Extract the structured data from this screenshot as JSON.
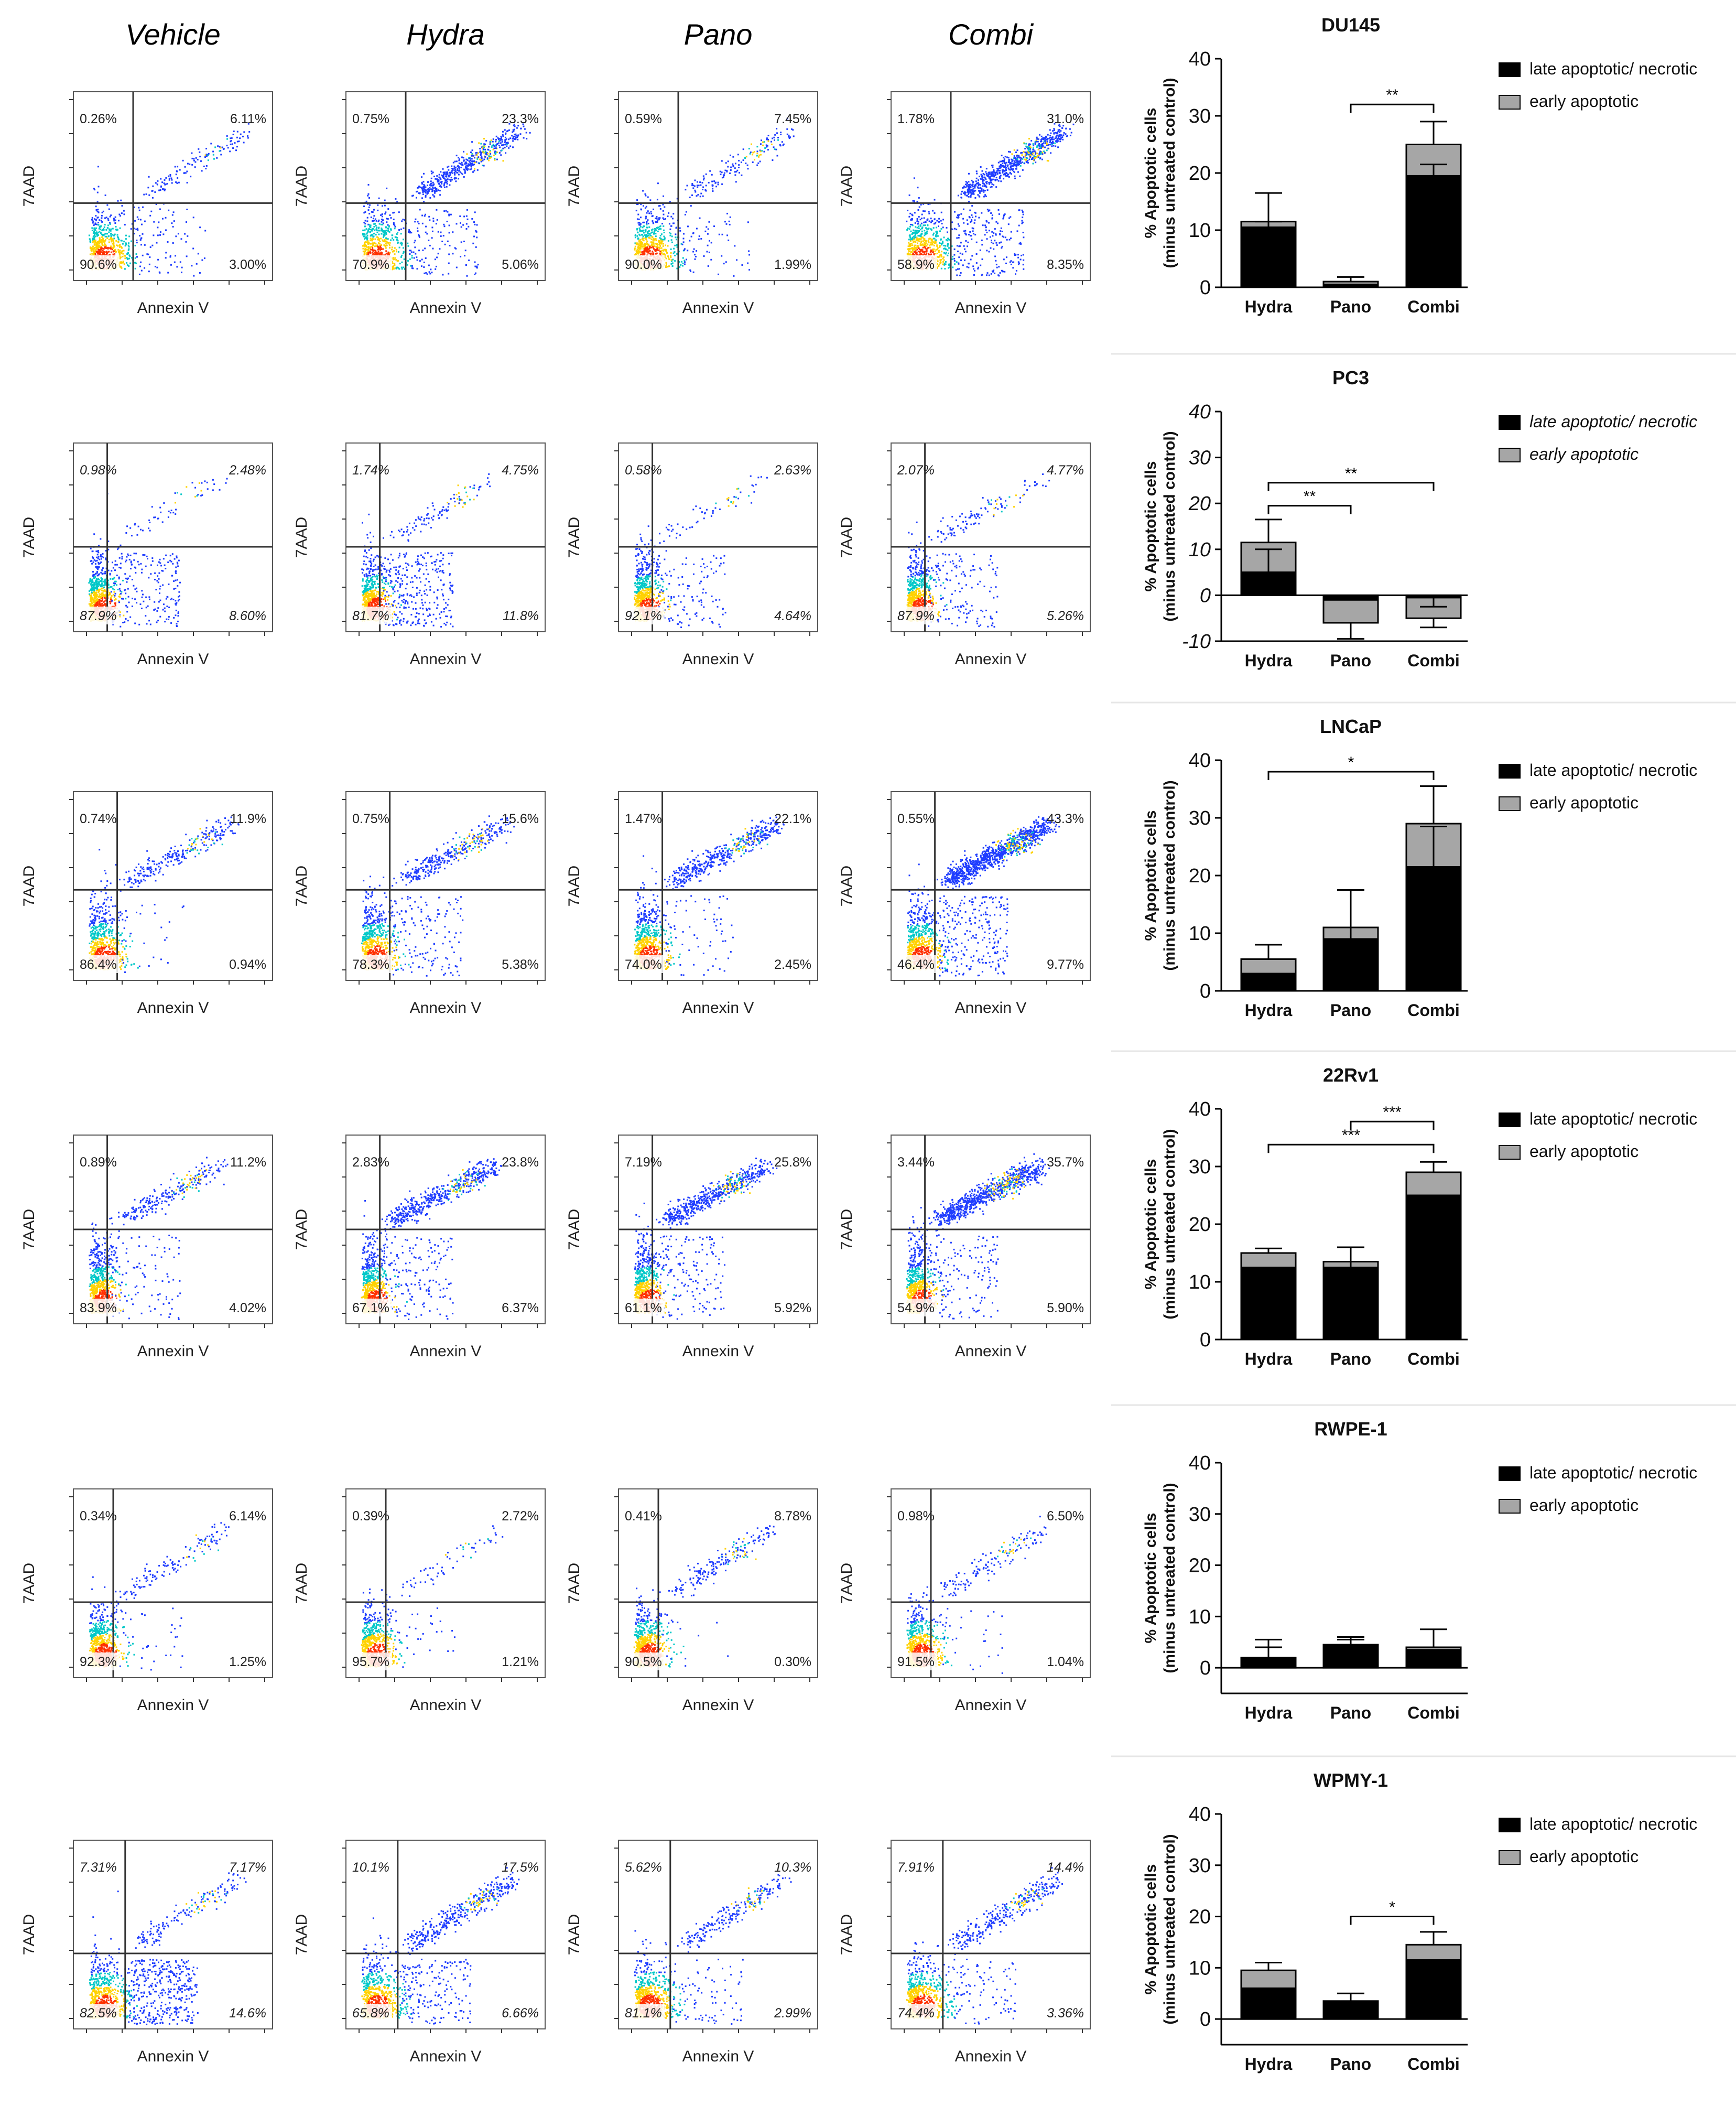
{
  "conditions": [
    "Vehicle",
    "Hydra",
    "Pano",
    "Combi"
  ],
  "flow_axis_labels": {
    "x": "Annexin V",
    "y": "7AAD"
  },
  "colors": {
    "late_apoptotic": "#000000",
    "early_apoptotic": "#a6a6a6",
    "dots_low": "#1f3dff",
    "dots_mid": "#00c8c8",
    "dots_high": "#ffd200",
    "dots_peak": "#ff3000"
  },
  "chart_data": [
    {
      "type": "bar",
      "title": "DU145",
      "categories": [
        "Hydra",
        "Pano",
        "Combi"
      ],
      "ylabel": "% Apoptotic cells (minus untreated control)",
      "ylim": [
        0,
        40
      ],
      "yticks": [
        0,
        10,
        20,
        30,
        40
      ],
      "legend": [
        "late apoptotic/ necrotic",
        "early apoptotic"
      ],
      "series": [
        {
          "name": "late apoptotic/ necrotic",
          "values": [
            10.5,
            0.5,
            19.5
          ]
        },
        {
          "name": "early apoptotic",
          "values": [
            1.0,
            0.5,
            5.5
          ]
        }
      ],
      "errors": [
        [
          5.0,
          0.8,
          4.0
        ],
        [
          1.0,
          0,
          2.0
        ]
      ],
      "significance": [
        {
          "from": "Pano",
          "to": "Combi",
          "label": "**"
        }
      ],
      "flow": [
        {
          "condition": "Vehicle",
          "ul": "0.26%",
          "ur": "6.11%",
          "ll": "90.6%",
          "lr": "3.00%"
        },
        {
          "condition": "Hydra",
          "ul": "0.75%",
          "ur": "23.3%",
          "ll": "70.9%",
          "lr": "5.06%"
        },
        {
          "condition": "Pano",
          "ul": "0.59%",
          "ur": "7.45%",
          "ll": "90.0%",
          "lr": "1.99%"
        },
        {
          "condition": "Combi",
          "ul": "1.78%",
          "ur": "31.0%",
          "ll": "58.9%",
          "lr": "8.35%"
        }
      ]
    },
    {
      "type": "bar",
      "title": "PC3",
      "categories": [
        "Hydra",
        "Pano",
        "Combi"
      ],
      "ylabel": "% Apoptotic cells (minus untreated control)",
      "ylim": [
        -10,
        40
      ],
      "yticks": [
        -10,
        0,
        10,
        20,
        30,
        40
      ],
      "legend": [
        "late apoptotic/ necrotic",
        "early apoptotic"
      ],
      "series": [
        {
          "name": "late apoptotic/ necrotic",
          "values": [
            5.0,
            -1.0,
            -0.5
          ]
        },
        {
          "name": "early apoptotic",
          "values": [
            6.5,
            -5.0,
            -4.5
          ]
        }
      ],
      "errors": [
        [
          5.0,
          3.5,
          2.0
        ],
        [
          5.0,
          0,
          2.0
        ]
      ],
      "significance": [
        {
          "from": "Hydra",
          "to": "Pano",
          "label": "**"
        },
        {
          "from": "Hydra",
          "to": "Combi",
          "label": "**"
        }
      ],
      "flow": [
        {
          "condition": "Vehicle",
          "ul": "0.98%",
          "ur": "2.48%",
          "ll": "87.9%",
          "lr": "8.60%"
        },
        {
          "condition": "Hydra",
          "ul": "1.74%",
          "ur": "4.75%",
          "ll": "81.7%",
          "lr": "11.8%"
        },
        {
          "condition": "Pano",
          "ul": "0.58%",
          "ur": "2.63%",
          "ll": "92.1%",
          "lr": "4.64%"
        },
        {
          "condition": "Combi",
          "ul": "2.07%",
          "ur": "4.77%",
          "ll": "87.9%",
          "lr": "5.26%"
        }
      ]
    },
    {
      "type": "bar",
      "title": "LNCaP",
      "categories": [
        "Hydra",
        "Pano",
        "Combi"
      ],
      "ylabel": "% Apoptotic cells (minus untreated control)",
      "ylim": [
        0,
        40
      ],
      "yticks": [
        0,
        10,
        20,
        30,
        40
      ],
      "legend": [
        "late apoptotic/ necrotic",
        "early apoptotic"
      ],
      "series": [
        {
          "name": "late apoptotic/ necrotic",
          "values": [
            3.0,
            9.0,
            21.5
          ]
        },
        {
          "name": "early apoptotic",
          "values": [
            2.5,
            2.0,
            7.5
          ]
        }
      ],
      "errors": [
        [
          2.5,
          6.5,
          6.5
        ],
        [
          0,
          2.0,
          7.0
        ]
      ],
      "significance": [
        {
          "from": "Hydra",
          "to": "Combi",
          "label": "*"
        }
      ],
      "flow": [
        {
          "condition": "Vehicle",
          "ul": "0.74%",
          "ur": "11.9%",
          "ll": "86.4%",
          "lr": "0.94%"
        },
        {
          "condition": "Hydra",
          "ul": "0.75%",
          "ur": "15.6%",
          "ll": "78.3%",
          "lr": "5.38%"
        },
        {
          "condition": "Pano",
          "ul": "1.47%",
          "ur": "22.1%",
          "ll": "74.0%",
          "lr": "2.45%"
        },
        {
          "condition": "Combi",
          "ul": "0.55%",
          "ur": "43.3%",
          "ll": "46.4%",
          "lr": "9.77%"
        }
      ]
    },
    {
      "type": "bar",
      "title": "22Rv1",
      "categories": [
        "Hydra",
        "Pano",
        "Combi"
      ],
      "ylabel": "% Apoptotic cells (minus untreated control)",
      "ylim": [
        0,
        40
      ],
      "yticks": [
        0,
        10,
        20,
        30,
        40
      ],
      "legend": [
        "late apoptotic/ necrotic",
        "early apoptotic"
      ],
      "series": [
        {
          "name": "late apoptotic/ necrotic",
          "values": [
            12.5,
            12.5,
            25.0
          ]
        },
        {
          "name": "early apoptotic",
          "values": [
            2.5,
            1.0,
            4.0
          ]
        }
      ],
      "errors": [
        [
          0.8,
          2.5,
          1.8
        ],
        [
          0,
          1.0,
          0
        ]
      ],
      "significance": [
        {
          "from": "Hydra",
          "to": "Combi",
          "label": "***"
        },
        {
          "from": "Pano",
          "to": "Combi",
          "label": "***"
        }
      ],
      "flow": [
        {
          "condition": "Vehicle",
          "ul": "0.89%",
          "ur": "11.2%",
          "ll": "83.9%",
          "lr": "4.02%"
        },
        {
          "condition": "Hydra",
          "ul": "2.83%",
          "ur": "23.8%",
          "ll": "67.1%",
          "lr": "6.37%"
        },
        {
          "condition": "Pano",
          "ul": "7.19%",
          "ur": "25.8%",
          "ll": "61.1%",
          "lr": "5.92%"
        },
        {
          "condition": "Combi",
          "ul": "3.44%",
          "ur": "35.7%",
          "ll": "54.9%",
          "lr": "5.90%"
        }
      ]
    },
    {
      "type": "bar",
      "title": "RWPE-1",
      "categories": [
        "Hydra",
        "Pano",
        "Combi"
      ],
      "ylabel": "% Apoptotic cells (minus untreated control)",
      "ylim": [
        -5,
        40
      ],
      "yticks": [
        0,
        10,
        20,
        30,
        40
      ],
      "legend": [
        "late apoptotic/ necrotic",
        "early apoptotic"
      ],
      "series": [
        {
          "name": "late apoptotic/ necrotic",
          "values": [
            2.0,
            4.5,
            3.5
          ]
        },
        {
          "name": "early apoptotic",
          "values": [
            -1.0,
            -1.5,
            0.5
          ]
        }
      ],
      "errors": [
        [
          4.5,
          2.5,
          3.5
        ],
        [
          2.0,
          1.5,
          0
        ]
      ],
      "significance": [],
      "flow": [
        {
          "condition": "Vehicle",
          "ul": "0.34%",
          "ur": "6.14%",
          "ll": "92.3%",
          "lr": "1.25%"
        },
        {
          "condition": "Hydra",
          "ul": "0.39%",
          "ur": "2.72%",
          "ll": "95.7%",
          "lr": "1.21%"
        },
        {
          "condition": "Pano",
          "ul": "0.41%",
          "ur": "8.78%",
          "ll": "90.5%",
          "lr": "0.30%"
        },
        {
          "condition": "Combi",
          "ul": "0.98%",
          "ur": "6.50%",
          "ll": "91.5%",
          "lr": "1.04%"
        }
      ]
    },
    {
      "type": "bar",
      "title": "WPMY-1",
      "categories": [
        "Hydra",
        "Pano",
        "Combi"
      ],
      "ylabel": "% Apoptotic cells (minus untreated control)",
      "ylim": [
        -5,
        40
      ],
      "yticks": [
        0,
        10,
        20,
        30,
        40
      ],
      "legend": [
        "late apoptotic/ necrotic",
        "early apoptotic"
      ],
      "series": [
        {
          "name": "late apoptotic/ necrotic",
          "values": [
            6.0,
            3.5,
            11.5
          ]
        },
        {
          "name": "early apoptotic",
          "values": [
            3.5,
            -1.0,
            3.0
          ]
        }
      ],
      "errors": [
        [
          1.5,
          2.5,
          2.5
        ],
        [
          0,
          0,
          0
        ]
      ],
      "significance": [
        {
          "from": "Pano",
          "to": "Combi",
          "label": "*"
        }
      ],
      "flow": [
        {
          "condition": "Vehicle",
          "ul": "7.31%",
          "ur": "7.17%",
          "ll": "82.5%",
          "lr": "14.6%"
        },
        {
          "condition": "Hydra",
          "ul": "10.1%",
          "ur": "17.5%",
          "ll": "65.8%",
          "lr": "6.66%"
        },
        {
          "condition": "Pano",
          "ul": "5.62%",
          "ur": "10.3%",
          "ll": "81.1%",
          "lr": "2.99%"
        },
        {
          "condition": "Combi",
          "ul": "7.91%",
          "ur": "14.4%",
          "ll": "74.4%",
          "lr": "3.36%"
        }
      ]
    }
  ]
}
